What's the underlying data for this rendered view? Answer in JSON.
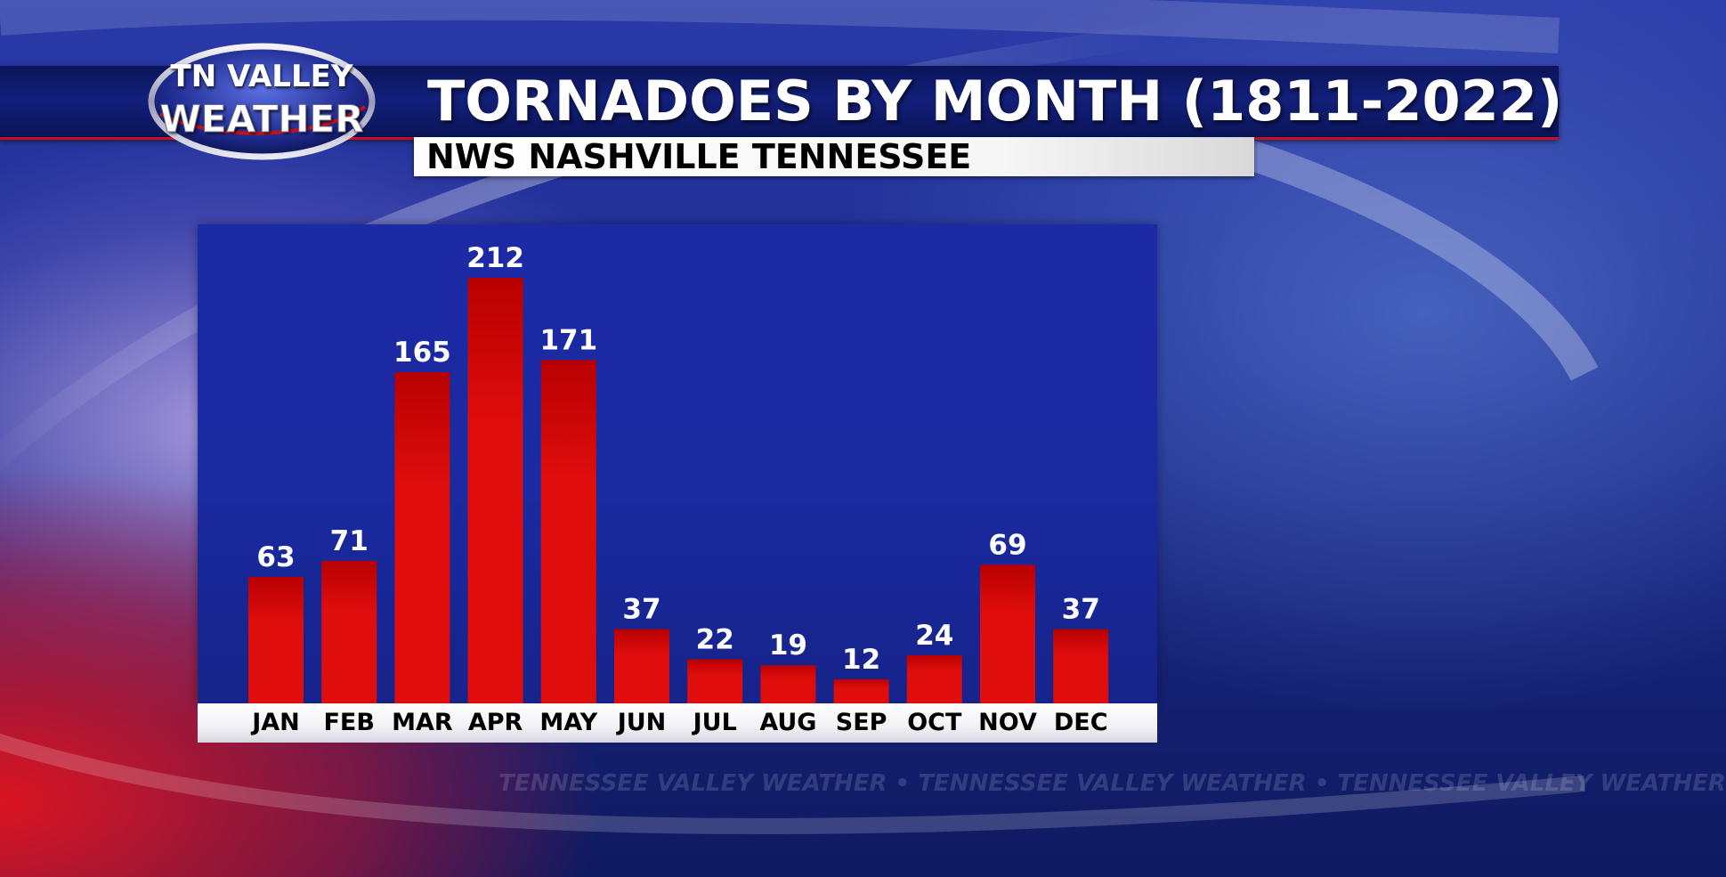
{
  "logo": {
    "line1": "TN VALLEY",
    "line2": "WEATHER"
  },
  "header": {
    "title": "TORNADOES BY MONTH (1811-2022)",
    "subtitle": "NWS NASHVILLE TENNESSEE"
  },
  "watermark": "TENNESSEE VALLEY WEATHER  •  TENNESSEE VALLEY WEATHER  •  TENNESSEE VALLEY WEATHER",
  "colors": {
    "bar": "#e00d0d",
    "bar_dark": "#b80000",
    "label": "#ffffff",
    "panel": "#1c2aa6"
  },
  "chart_data": {
    "type": "bar",
    "title": "TORNADOES BY MONTH (1811-2022)",
    "subtitle": "NWS NASHVILLE TENNESSEE",
    "categories": [
      "JAN",
      "FEB",
      "MAR",
      "APR",
      "MAY",
      "JUN",
      "JUL",
      "AUG",
      "SEP",
      "OCT",
      "NOV",
      "DEC"
    ],
    "values": [
      63,
      71,
      165,
      212,
      171,
      37,
      22,
      19,
      12,
      24,
      69,
      37
    ],
    "xlabel": "",
    "ylabel": "",
    "ylim": [
      0,
      212
    ],
    "grid": false,
    "legend": "none",
    "data_labels": true
  }
}
